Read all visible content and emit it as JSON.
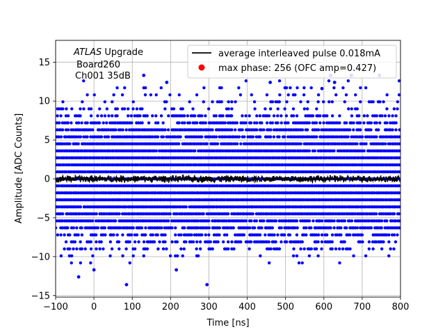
{
  "chart_data": {
    "type": "scatter",
    "xlabel": "Time [ns]",
    "ylabel": "Amplitude [ADC Counts]",
    "xlim": [
      -100,
      800
    ],
    "ylim": [
      -15.2,
      17.8
    ],
    "xticks": [
      -100,
      0,
      100,
      200,
      300,
      400,
      500,
      600,
      700,
      800
    ],
    "yticks": [
      -15,
      -10,
      -5,
      0,
      5,
      10,
      15
    ],
    "grid": true,
    "legend_position": "top-right",
    "annotation": {
      "line1_italic": "ATLAS",
      "line1_rest": " Upgrade",
      "line2": "Board260",
      "line3": "Ch001 35dB"
    },
    "series": [
      {
        "name": "average interleaved pulse 0.018mA",
        "kind": "line",
        "color": "#000000",
        "description_values": {
          "mean": 0.0,
          "noise_amplitude": 0.5
        }
      },
      {
        "name": "max phase: 256 (OFC amp=0.427)",
        "kind": "marker",
        "color": "#ff0000",
        "legend_only": true
      },
      {
        "name": "",
        "kind": "scatter",
        "color": "#0000ff",
        "levels": [
          {
            "y": 0.0,
            "density": 1.0
          },
          {
            "y": -0.9,
            "density": 1.0
          },
          {
            "y": 0.9,
            "density": 1.0
          },
          {
            "y": -1.8,
            "density": 1.0
          },
          {
            "y": 1.8,
            "density": 1.0
          },
          {
            "y": -2.7,
            "density": 1.0
          },
          {
            "y": 2.7,
            "density": 1.0
          },
          {
            "y": -3.6,
            "density": 0.98
          },
          {
            "y": 3.6,
            "density": 0.98
          },
          {
            "y": -4.5,
            "density": 0.95
          },
          {
            "y": 4.5,
            "density": 0.95
          },
          {
            "y": -5.4,
            "density": 0.9
          },
          {
            "y": 5.4,
            "density": 0.9
          },
          {
            "y": -6.3,
            "density": 0.8
          },
          {
            "y": 6.3,
            "density": 0.8
          },
          {
            "y": -7.2,
            "density": 0.65
          },
          {
            "y": 7.2,
            "density": 0.65
          },
          {
            "y": -8.1,
            "density": 0.5
          },
          {
            "y": 8.1,
            "density": 0.5
          },
          {
            "y": -9.0,
            "density": 0.3
          },
          {
            "y": 9.0,
            "density": 0.3
          },
          {
            "y": -9.9,
            "density": 0.15
          },
          {
            "y": 9.9,
            "density": 0.18
          },
          {
            "y": -10.8,
            "density": 0.06
          },
          {
            "y": 10.8,
            "density": 0.1
          },
          {
            "y": 11.7,
            "density": 0.05
          },
          {
            "y": 12.6,
            "density": 0.02
          }
        ],
        "outliers": [
          {
            "x": -40,
            "y": -12.6
          },
          {
            "x": 85,
            "y": -13.6
          },
          {
            "x": 295,
            "y": -13.6
          },
          {
            "x": 0,
            "y": -11.7
          },
          {
            "x": 215,
            "y": -11.7
          },
          {
            "x": 130,
            "y": 13.3
          },
          {
            "x": 618,
            "y": 13.3
          },
          {
            "x": 672,
            "y": 13.3
          },
          {
            "x": 745,
            "y": 13.3
          },
          {
            "x": 595,
            "y": 11.6
          },
          {
            "x": 628,
            "y": 12.4
          },
          {
            "x": 190,
            "y": 12.4
          },
          {
            "x": 460,
            "y": 12.4
          }
        ]
      }
    ]
  }
}
